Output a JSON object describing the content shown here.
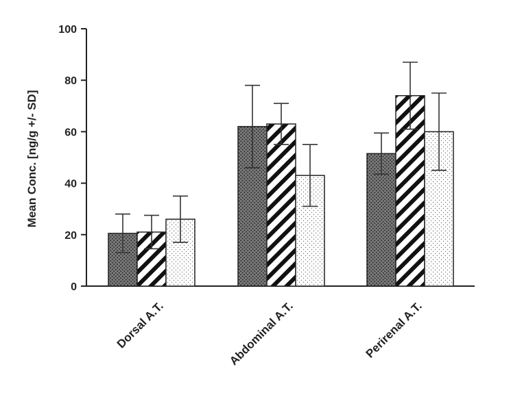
{
  "chart_data": {
    "type": "bar",
    "categories": [
      "Dorsal A.T.",
      "Abdominal A.T.",
      "Perirenal A.T."
    ],
    "series": [
      {
        "pattern": "dense-dots",
        "values": [
          20.5,
          62,
          51.5
        ],
        "errors": [
          7.5,
          16,
          8
        ]
      },
      {
        "pattern": "diagonal-stripes",
        "values": [
          21,
          63,
          74
        ],
        "errors": [
          6.5,
          8,
          13
        ]
      },
      {
        "pattern": "sparse-dots",
        "values": [
          26,
          43,
          60
        ],
        "errors": [
          9,
          12,
          15
        ]
      }
    ],
    "ylabel": "Mean Conc. [ng/g +/- SD]",
    "ylim": [
      0,
      100
    ],
    "yticks": [
      0,
      20,
      40,
      60,
      80,
      100
    ],
    "grid": false
  }
}
